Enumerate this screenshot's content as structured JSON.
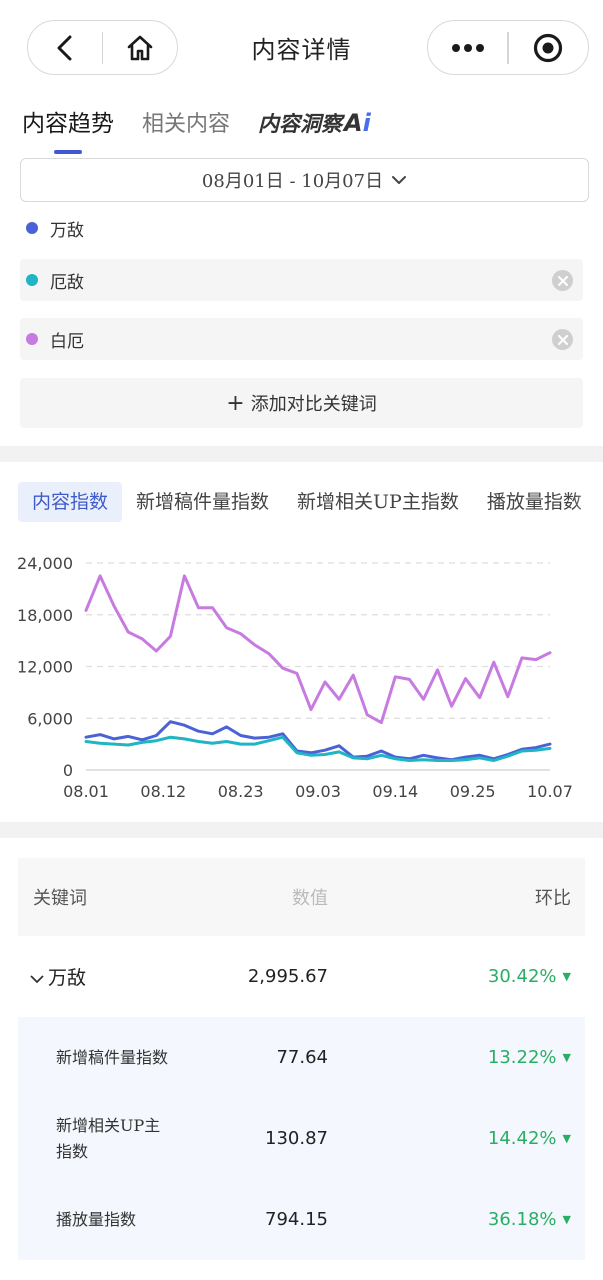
{
  "header": {
    "title": "内容详情"
  },
  "tabs": [
    {
      "label": "内容趋势",
      "active": true
    },
    {
      "label": "相关内容",
      "active": false
    },
    {
      "label": "内容洞察",
      "active": false,
      "badge": "Ai"
    }
  ],
  "date_range": "08月01日 - 10月07日",
  "keywords": [
    {
      "label": "万敌",
      "color": "#4a62d6"
    },
    {
      "label": "厄敌",
      "color": "#1fb5c4"
    },
    {
      "label": "白厄",
      "color": "#c77be0"
    }
  ],
  "add_keyword_label": "添加对比关键词",
  "metric_tabs": [
    {
      "label": "内容指数",
      "active": true
    },
    {
      "label": "新增稿件量指数",
      "active": false
    },
    {
      "label": "新增相关UP主指数",
      "active": false
    },
    {
      "label": "播放量指数",
      "active": false
    }
  ],
  "chart_data": {
    "type": "line",
    "x": [
      "08.01",
      "08.03",
      "08.05",
      "08.07",
      "08.09",
      "08.11",
      "08.13",
      "08.15",
      "08.17",
      "08.19",
      "08.21",
      "08.23",
      "08.25",
      "08.27",
      "08.29",
      "08.31",
      "09.02",
      "09.04",
      "09.06",
      "09.08",
      "09.10",
      "09.12",
      "09.14",
      "09.16",
      "09.18",
      "09.20",
      "09.22",
      "09.24",
      "09.26",
      "09.28",
      "09.30",
      "10.02",
      "10.04",
      "10.07"
    ],
    "x_tick_labels": [
      "08.01",
      "08.12",
      "08.23",
      "09.03",
      "09.14",
      "09.25",
      "10.07"
    ],
    "y_tick_labels": [
      "0",
      "6,000",
      "12,000",
      "18,000",
      "24,000"
    ],
    "ylim": [
      0,
      24000
    ],
    "grid": true,
    "series": [
      {
        "name": "万敌",
        "color": "#4a62d6",
        "values": [
          3800,
          4100,
          3600,
          3900,
          3500,
          4000,
          5600,
          5200,
          4500,
          4200,
          5000,
          4000,
          3700,
          3800,
          4200,
          2200,
          2000,
          2300,
          2800,
          1500,
          1600,
          2200,
          1500,
          1300,
          1700,
          1400,
          1200,
          1500,
          1700,
          1300,
          1800,
          2400,
          2600,
          3000
        ]
      },
      {
        "name": "厄敌",
        "color": "#1fb5c4",
        "values": [
          3300,
          3100,
          3000,
          2900,
          3200,
          3400,
          3800,
          3600,
          3300,
          3100,
          3300,
          3000,
          3000,
          3400,
          3800,
          2000,
          1700,
          1800,
          2100,
          1400,
          1300,
          1700,
          1300,
          1100,
          1200,
          1100,
          1100,
          1200,
          1400,
          1100,
          1600,
          2200,
          2300,
          2500
        ]
      },
      {
        "name": "白厄",
        "color": "#c77be0",
        "values": [
          18500,
          22500,
          19000,
          16000,
          15200,
          13800,
          15500,
          22500,
          18800,
          18800,
          16500,
          15800,
          14500,
          13500,
          11800,
          11200,
          7000,
          10200,
          8200,
          11000,
          6400,
          5500,
          10800,
          10500,
          8200,
          11600,
          7400,
          10600,
          8400,
          12500,
          8500,
          13000,
          12800,
          13600
        ]
      }
    ]
  },
  "table": {
    "headers": {
      "keyword": "关键词",
      "value": "数值",
      "change": "环比"
    },
    "main_row": {
      "keyword": "万敌",
      "value": "2,995.67",
      "change": "30.42%"
    },
    "sub_rows": [
      {
        "label": "新增稿件量指数",
        "value": "77.64",
        "change": "13.22%"
      },
      {
        "label": "新增相关UP主指数",
        "value": "130.87",
        "change": "14.42%"
      },
      {
        "label": "播放量指数",
        "value": "794.15",
        "change": "36.18%"
      }
    ]
  }
}
